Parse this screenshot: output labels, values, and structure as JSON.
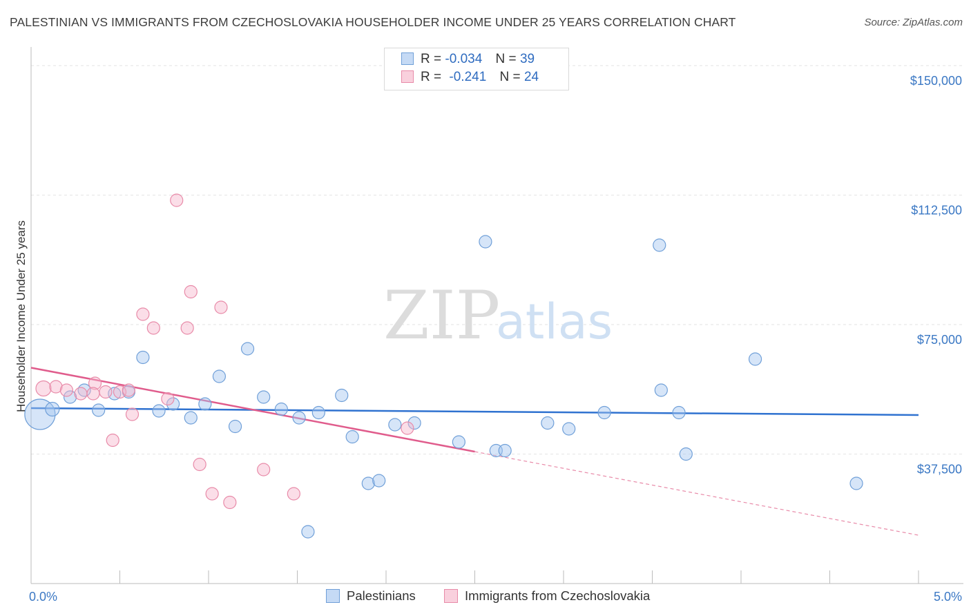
{
  "title": "PALESTINIAN VS IMMIGRANTS FROM CZECHOSLOVAKIA HOUSEHOLDER INCOME UNDER 25 YEARS CORRELATION CHART",
  "source": "Source: ZipAtlas.com",
  "watermark": {
    "zip": "ZIP",
    "atlas": "atlas"
  },
  "legend": {
    "rows": [
      {
        "r_label": "R =",
        "r_value": "-0.034",
        "n_label": "N =",
        "n_value": "39",
        "color": "#a9c8f0",
        "border": "#6f9fd8"
      },
      {
        "r_label": "R =",
        "r_value": "-0.241",
        "n_label": "N =",
        "n_value": "24",
        "color": "#f7c0d2",
        "border": "#e88aa8"
      }
    ]
  },
  "bottom_legend": [
    {
      "label": "Palestinians",
      "color": "#c5daf5",
      "border": "#6f9fd8"
    },
    {
      "label": "Immigrants from Czechoslovakia",
      "color": "#f9d0dd",
      "border": "#e88aa8"
    }
  ],
  "chart_data": {
    "type": "scatter",
    "title": "PALESTINIAN VS IMMIGRANTS FROM CZECHOSLOVAKIA HOUSEHOLDER INCOME UNDER 25 YEARS CORRELATION CHART",
    "xlabel": "",
    "ylabel": "Householder Income Under 25 years",
    "x_tick_labels": [
      "0.0%",
      "5.0%"
    ],
    "y_tick_labels": [
      "$37,500",
      "$75,000",
      "$112,500",
      "$150,000"
    ],
    "y_ticks": [
      37500,
      75000,
      112500,
      150000
    ],
    "xlim": [
      0,
      5
    ],
    "ylim": [
      0,
      153000
    ],
    "grid": true,
    "legend_placement": "top-center",
    "series": [
      {
        "name": "Palestinians",
        "color": "#6f9fd8",
        "fill": "rgba(165,198,240,0.45)",
        "trend": {
          "x": [
            0,
            5
          ],
          "y": [
            50800,
            48800
          ]
        },
        "points": [
          [
            0.05,
            49000,
            22
          ],
          [
            0.12,
            50500,
            10
          ],
          [
            0.22,
            54000,
            9
          ],
          [
            0.3,
            56000,
            9
          ],
          [
            0.38,
            50200,
            9
          ],
          [
            0.47,
            55000,
            9
          ],
          [
            0.55,
            55500,
            9
          ],
          [
            0.63,
            65500,
            9
          ],
          [
            0.72,
            50000,
            9
          ],
          [
            0.8,
            52000,
            9
          ],
          [
            0.9,
            48000,
            9
          ],
          [
            0.98,
            52000,
            9
          ],
          [
            1.06,
            60000,
            9
          ],
          [
            1.15,
            45500,
            9
          ],
          [
            1.22,
            68000,
            9
          ],
          [
            1.31,
            54000,
            9
          ],
          [
            1.41,
            50500,
            9
          ],
          [
            1.51,
            48000,
            9
          ],
          [
            1.62,
            49500,
            9
          ],
          [
            1.75,
            54500,
            9
          ],
          [
            1.81,
            42500,
            9
          ],
          [
            1.9,
            29000,
            9
          ],
          [
            1.96,
            29800,
            9
          ],
          [
            2.05,
            46000,
            9
          ],
          [
            2.16,
            46500,
            9
          ],
          [
            1.56,
            15000,
            9
          ],
          [
            2.41,
            41000,
            9
          ],
          [
            2.56,
            99000,
            9
          ],
          [
            2.62,
            38500,
            9
          ],
          [
            2.67,
            38500,
            9
          ],
          [
            2.91,
            46500,
            9
          ],
          [
            3.03,
            44800,
            9
          ],
          [
            3.23,
            49500,
            9
          ],
          [
            3.55,
            56000,
            9
          ],
          [
            3.54,
            98000,
            9
          ],
          [
            3.65,
            49500,
            9
          ],
          [
            3.69,
            37500,
            9
          ],
          [
            4.08,
            65000,
            9
          ],
          [
            4.65,
            29000,
            9
          ]
        ]
      },
      {
        "name": "Immigrants from Czechoslovakia",
        "color": "#e88aa8",
        "fill": "rgba(247,182,205,0.45)",
        "trend": {
          "x": [
            0,
            2.5
          ],
          "y": [
            62500,
            38200
          ]
        },
        "trend_extension": {
          "x": [
            2.5,
            5
          ],
          "y": [
            38200,
            14000
          ]
        },
        "points": [
          [
            0.07,
            56500,
            11
          ],
          [
            0.14,
            57000,
            9
          ],
          [
            0.2,
            56000,
            9
          ],
          [
            0.28,
            55000,
            9
          ],
          [
            0.36,
            58000,
            9
          ],
          [
            0.42,
            55500,
            9
          ],
          [
            0.5,
            55500,
            9
          ],
          [
            0.46,
            41500,
            9
          ],
          [
            0.57,
            49000,
            9
          ],
          [
            0.63,
            78000,
            9
          ],
          [
            0.69,
            74000,
            9
          ],
          [
            0.77,
            53500,
            9
          ],
          [
            0.82,
            111000,
            9
          ],
          [
            0.88,
            74000,
            9
          ],
          [
            0.9,
            84500,
            9
          ],
          [
            0.95,
            34500,
            9
          ],
          [
            1.02,
            26000,
            9
          ],
          [
            1.07,
            80000,
            9
          ],
          [
            1.12,
            23500,
            9
          ],
          [
            1.31,
            33000,
            9
          ],
          [
            1.48,
            26000,
            9
          ],
          [
            2.12,
            45000,
            9
          ],
          [
            0.35,
            55000,
            9
          ],
          [
            0.55,
            56000,
            9
          ]
        ]
      }
    ]
  }
}
